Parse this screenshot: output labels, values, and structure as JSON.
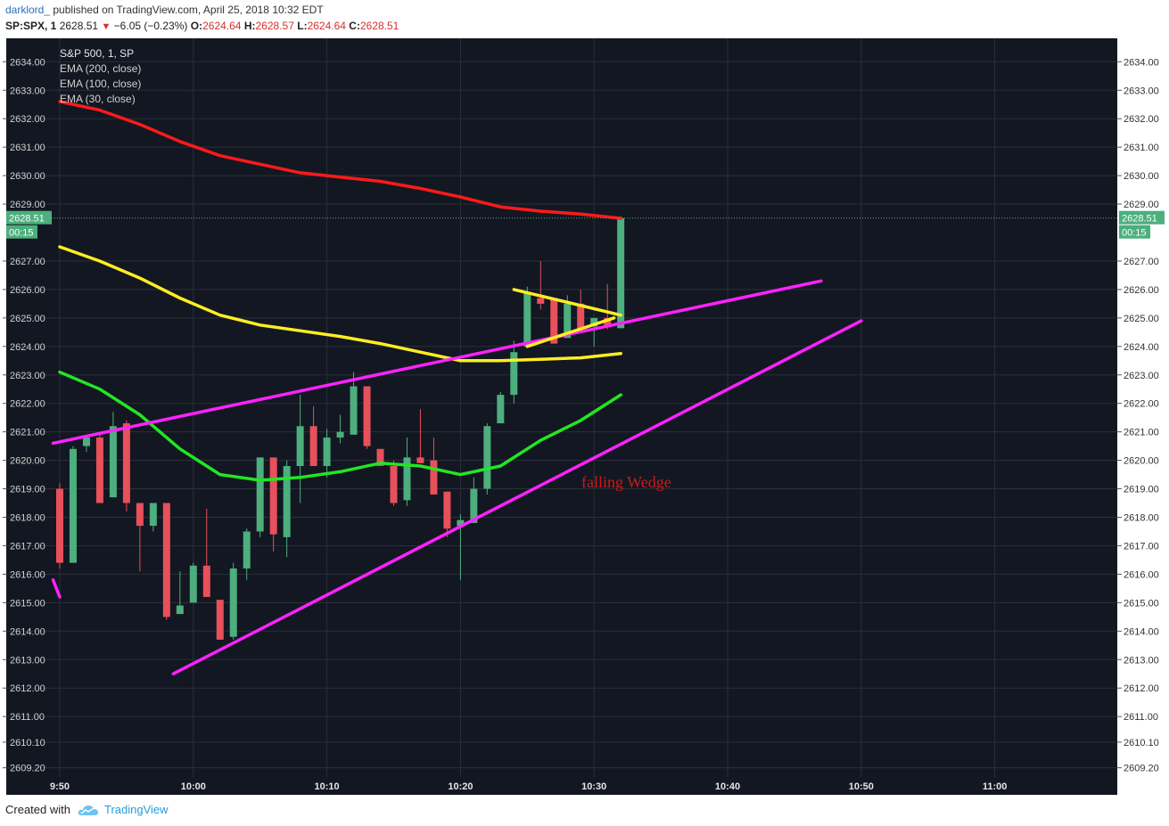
{
  "header": {
    "author": "darklord_",
    "published": "published on TradingView.com, April 25, 2018 10:32 EDT",
    "symbol": "SP:SPX, 1",
    "last": "2628.51",
    "change": "−6.05 (−0.23%)",
    "o_label": "O:",
    "o_val": "2624.64",
    "h_label": "H:",
    "h_val": "2628.57",
    "l_label": "L:",
    "l_val": "2624.64",
    "c_label": "C:",
    "c_val": "2628.51"
  },
  "legend": {
    "title": "S&P 500, 1, SP",
    "ema200": "EMA (200, close)",
    "ema100": "EMA (100, close)",
    "ema30": "EMA (30, close)"
  },
  "price_tag": {
    "price": "2628.51",
    "timer": "00:15",
    "color": "#4caf7d"
  },
  "annotation": {
    "text": "falling Wedge",
    "color": "#cc1a1a"
  },
  "footer": {
    "created": "Created with",
    "brand": "TradingView"
  },
  "colors": {
    "background": "#131722",
    "grid": "#2b2f3a",
    "up": "#4caf7d",
    "down": "#e8505b",
    "ema200": "#ff1a1a",
    "ema100": "#ffee22",
    "ema30": "#22e622",
    "trend": "#ff22ff"
  },
  "chart_data": {
    "type": "candlestick",
    "y_axis_ticks": [
      "2634.00",
      "2633.00",
      "2632.00",
      "2631.00",
      "2630.00",
      "2629.00",
      "2627.00",
      "2626.00",
      "2625.00",
      "2624.00",
      "2623.00",
      "2622.00",
      "2621.00",
      "2620.00",
      "2619.00",
      "2618.00",
      "2617.00",
      "2616.00",
      "2615.00",
      "2614.00",
      "2613.00",
      "2612.00",
      "2611.00",
      "2610.10",
      "2609.20"
    ],
    "x_axis_ticks": [
      "9:50",
      "10:00",
      "10:10",
      "10:20",
      "10:30",
      "10:40",
      "10:50",
      "11:00"
    ],
    "ylim": [
      2609.0,
      2634.4
    ],
    "xlim": [
      "9:50",
      "11:09"
    ],
    "grid": true,
    "candles": [
      {
        "t": "9:50",
        "o": 2619.0,
        "h": 2619.2,
        "l": 2616.2,
        "c": 2616.4
      },
      {
        "t": "9:51",
        "o": 2616.4,
        "h": 2620.5,
        "l": 2616.4,
        "c": 2620.4
      },
      {
        "t": "9:52",
        "o": 2620.5,
        "h": 2620.9,
        "l": 2620.3,
        "c": 2620.8
      },
      {
        "t": "9:53",
        "o": 2620.8,
        "h": 2620.9,
        "l": 2618.5,
        "c": 2618.5
      },
      {
        "t": "9:54",
        "o": 2618.7,
        "h": 2621.7,
        "l": 2618.7,
        "c": 2621.2
      },
      {
        "t": "9:55",
        "o": 2621.3,
        "h": 2621.4,
        "l": 2618.2,
        "c": 2618.5
      },
      {
        "t": "9:56",
        "o": 2618.5,
        "h": 2618.5,
        "l": 2616.1,
        "c": 2617.7
      },
      {
        "t": "9:57",
        "o": 2617.7,
        "h": 2618.5,
        "l": 2617.5,
        "c": 2618.5
      },
      {
        "t": "9:58",
        "o": 2618.5,
        "h": 2618.5,
        "l": 2614.4,
        "c": 2614.5
      },
      {
        "t": "9:59",
        "o": 2614.6,
        "h": 2616.1,
        "l": 2614.6,
        "c": 2614.9
      },
      {
        "t": "10:00",
        "o": 2615.0,
        "h": 2616.4,
        "l": 2615.0,
        "c": 2616.3
      },
      {
        "t": "10:01",
        "o": 2616.3,
        "h": 2618.3,
        "l": 2615.2,
        "c": 2615.2
      },
      {
        "t": "10:02",
        "o": 2615.1,
        "h": 2615.1,
        "l": 2613.7,
        "c": 2613.7
      },
      {
        "t": "10:03",
        "o": 2613.8,
        "h": 2616.4,
        "l": 2613.7,
        "c": 2616.2
      },
      {
        "t": "10:04",
        "o": 2616.2,
        "h": 2617.6,
        "l": 2615.8,
        "c": 2617.5
      },
      {
        "t": "10:05",
        "o": 2617.5,
        "h": 2620.1,
        "l": 2617.3,
        "c": 2620.1
      },
      {
        "t": "10:06",
        "o": 2620.1,
        "h": 2620.1,
        "l": 2616.8,
        "c": 2617.4
      },
      {
        "t": "10:07",
        "o": 2617.3,
        "h": 2620.0,
        "l": 2616.6,
        "c": 2619.8
      },
      {
        "t": "10:08",
        "o": 2619.8,
        "h": 2622.3,
        "l": 2618.5,
        "c": 2621.2
      },
      {
        "t": "10:09",
        "o": 2621.2,
        "h": 2621.9,
        "l": 2619.8,
        "c": 2619.8
      },
      {
        "t": "10:10",
        "o": 2619.8,
        "h": 2621.1,
        "l": 2619.4,
        "c": 2620.8
      },
      {
        "t": "10:11",
        "o": 2620.8,
        "h": 2621.6,
        "l": 2620.6,
        "c": 2621.0
      },
      {
        "t": "10:12",
        "o": 2620.9,
        "h": 2623.1,
        "l": 2620.9,
        "c": 2622.6
      },
      {
        "t": "10:13",
        "o": 2622.6,
        "h": 2622.6,
        "l": 2620.4,
        "c": 2620.5
      },
      {
        "t": "10:14",
        "o": 2620.4,
        "h": 2620.4,
        "l": 2619.8,
        "c": 2619.8
      },
      {
        "t": "10:15",
        "o": 2619.8,
        "h": 2620.0,
        "l": 2618.4,
        "c": 2618.5
      },
      {
        "t": "10:16",
        "o": 2618.6,
        "h": 2620.8,
        "l": 2618.4,
        "c": 2620.1
      },
      {
        "t": "10:17",
        "o": 2620.1,
        "h": 2621.8,
        "l": 2619.9,
        "c": 2619.9
      },
      {
        "t": "10:18",
        "o": 2620.0,
        "h": 2620.8,
        "l": 2618.8,
        "c": 2618.8
      },
      {
        "t": "10:19",
        "o": 2618.9,
        "h": 2618.9,
        "l": 2617.3,
        "c": 2617.6
      },
      {
        "t": "10:20",
        "o": 2617.7,
        "h": 2618.1,
        "l": 2615.8,
        "c": 2617.9
      },
      {
        "t": "10:21",
        "o": 2617.8,
        "h": 2619.4,
        "l": 2617.8,
        "c": 2619.0
      },
      {
        "t": "10:22",
        "o": 2619.0,
        "h": 2621.3,
        "l": 2618.8,
        "c": 2621.2
      },
      {
        "t": "10:23",
        "o": 2621.3,
        "h": 2622.4,
        "l": 2621.3,
        "c": 2622.3
      },
      {
        "t": "10:24",
        "o": 2622.3,
        "h": 2624.2,
        "l": 2622.0,
        "c": 2623.8
      },
      {
        "t": "10:25",
        "o": 2624.0,
        "h": 2626.1,
        "l": 2624.0,
        "c": 2625.9
      },
      {
        "t": "10:26",
        "o": 2625.7,
        "h": 2627.0,
        "l": 2625.3,
        "c": 2625.5
      },
      {
        "t": "10:27",
        "o": 2625.7,
        "h": 2625.7,
        "l": 2624.1,
        "c": 2624.1
      },
      {
        "t": "10:28",
        "o": 2624.3,
        "h": 2625.8,
        "l": 2624.3,
        "c": 2625.5
      },
      {
        "t": "10:29",
        "o": 2625.5,
        "h": 2626.0,
        "l": 2624.6,
        "c": 2624.6
      },
      {
        "t": "10:30",
        "o": 2624.7,
        "h": 2625.0,
        "l": 2624.0,
        "c": 2625.0
      },
      {
        "t": "10:31",
        "o": 2625.0,
        "h": 2626.2,
        "l": 2624.6,
        "c": 2624.7
      },
      {
        "t": "10:32",
        "o": 2624.64,
        "h": 2628.57,
        "l": 2624.64,
        "c": 2628.51
      }
    ],
    "series": [
      {
        "name": "EMA (200, close)",
        "color": "#ff1a1a",
        "x": [
          0,
          3,
          6,
          9,
          12,
          15,
          18,
          21,
          24,
          27,
          30,
          33,
          36,
          39,
          42
        ],
        "y": [
          2632.6,
          2632.3,
          2631.8,
          2631.2,
          2630.7,
          2630.4,
          2630.1,
          2629.95,
          2629.8,
          2629.55,
          2629.25,
          2628.9,
          2628.75,
          2628.65,
          2628.5
        ]
      },
      {
        "name": "EMA (100, close)",
        "color": "#ffee22",
        "x": [
          0,
          3,
          6,
          9,
          12,
          15,
          18,
          21,
          24,
          27,
          30,
          33,
          36,
          39,
          42
        ],
        "y": [
          2627.5,
          2627.0,
          2626.4,
          2625.7,
          2625.1,
          2624.75,
          2624.55,
          2624.35,
          2624.1,
          2623.8,
          2623.5,
          2623.5,
          2623.55,
          2623.6,
          2623.75
        ]
      },
      {
        "name": "EMA (30, close)",
        "color": "#22e622",
        "x": [
          0,
          3,
          6,
          9,
          12,
          15,
          18,
          21,
          24,
          27,
          30,
          33,
          36,
          39,
          42
        ],
        "y": [
          2623.1,
          2622.5,
          2621.6,
          2620.4,
          2619.5,
          2619.3,
          2619.4,
          2619.6,
          2619.9,
          2619.8,
          2619.5,
          2619.8,
          2620.7,
          2621.4,
          2622.3
        ]
      }
    ],
    "trendlines": [
      {
        "x1": -0.5,
        "y1": 2620.6,
        "x2": 57,
        "y2": 2626.3
      },
      {
        "x1": 8.5,
        "y1": 2612.5,
        "x2": 60,
        "y2": 2624.9
      },
      {
        "x1": -0.5,
        "y1": 2615.8,
        "x2": 0,
        "y2": 2615.2
      },
      {
        "x1": 34,
        "y1": 2626.0,
        "x2": 42,
        "y2": 2625.1
      },
      {
        "x1": 35,
        "y1": 2624.0,
        "x2": 41.5,
        "y2": 2625.0
      }
    ]
  }
}
